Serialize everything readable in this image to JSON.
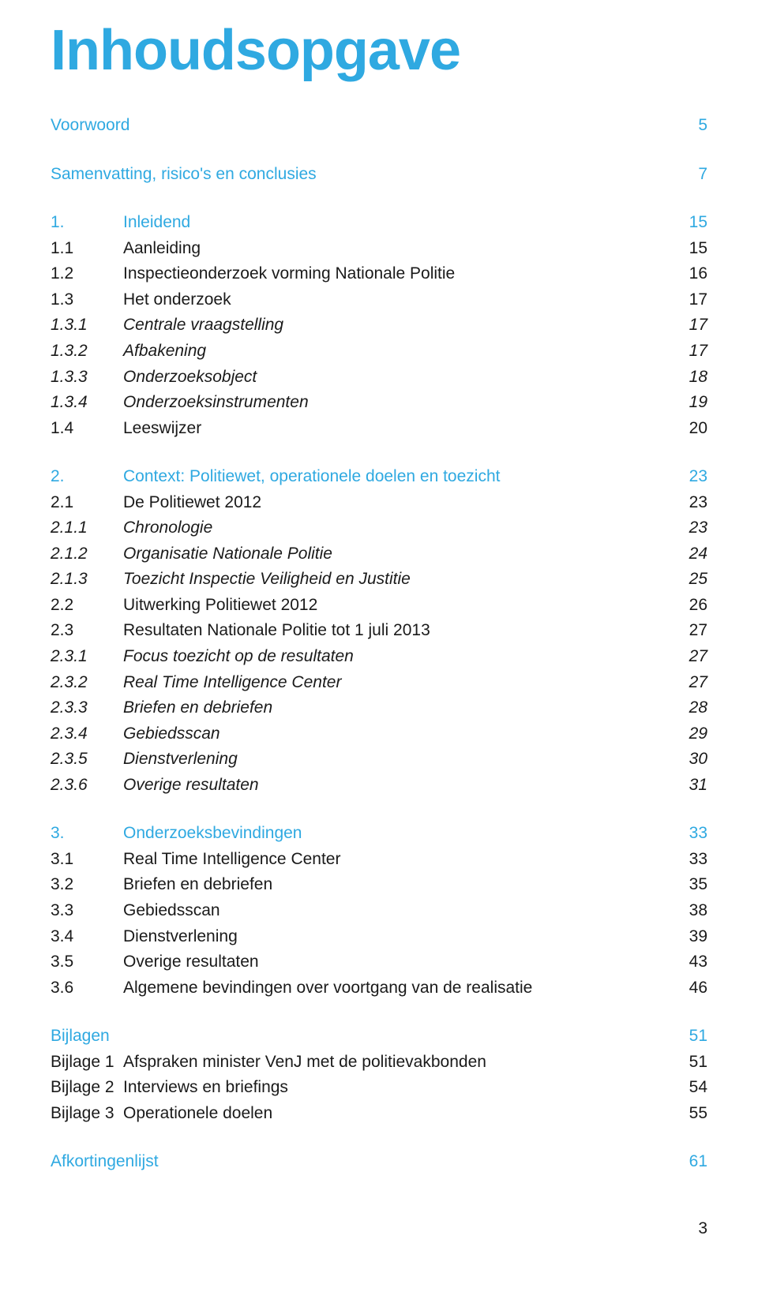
{
  "title": "Inhoudsopgave",
  "colors": {
    "accent": "#2fa9e1",
    "text": "#1a1a1a",
    "bg": "#ffffff"
  },
  "typography": {
    "title_size_pt": 54,
    "body_size_pt": 16,
    "font_family": "Segoe UI / Helvetica Neue"
  },
  "toc": [
    {
      "type": "section",
      "num": "",
      "label": "Voorwoord",
      "page": "5"
    },
    {
      "type": "section",
      "num": "",
      "label": "Samenvatting, risico's en conclusies",
      "page": "7"
    },
    {
      "type": "section",
      "num": "1.",
      "label": "Inleidend",
      "page": "15"
    },
    {
      "type": "item",
      "num": "1.1",
      "label": "Aanleiding",
      "page": "15"
    },
    {
      "type": "item",
      "num": "1.2",
      "label": "Inspectieonderzoek vorming Nationale Politie",
      "page": "16"
    },
    {
      "type": "item",
      "num": "1.3",
      "label": "Het onderzoek",
      "page": "17"
    },
    {
      "type": "sub",
      "num": "1.3.1",
      "label": "Centrale vraagstelling",
      "page": "17"
    },
    {
      "type": "sub",
      "num": "1.3.2",
      "label": "Afbakening",
      "page": "17"
    },
    {
      "type": "sub",
      "num": "1.3.3",
      "label": "Onderzoeksobject",
      "page": "18"
    },
    {
      "type": "sub",
      "num": "1.3.4",
      "label": "Onderzoeksinstrumenten",
      "page": "19"
    },
    {
      "type": "item",
      "num": "1.4",
      "label": "Leeswijzer",
      "page": "20"
    },
    {
      "type": "section",
      "num": "2.",
      "label": "Context: Politiewet, operationele doelen en toezicht",
      "page": "23"
    },
    {
      "type": "item",
      "num": "2.1",
      "label": "De Politiewet 2012",
      "page": "23"
    },
    {
      "type": "sub",
      "num": "2.1.1",
      "label": "Chronologie",
      "page": "23"
    },
    {
      "type": "sub",
      "num": "2.1.2",
      "label": "Organisatie Nationale Politie",
      "page": "24"
    },
    {
      "type": "sub",
      "num": "2.1.3",
      "label": "Toezicht Inspectie Veiligheid en Justitie",
      "page": "25"
    },
    {
      "type": "item",
      "num": "2.2",
      "label": "Uitwerking Politiewet 2012",
      "page": "26"
    },
    {
      "type": "item",
      "num": "2.3",
      "label": "Resultaten Nationale Politie tot 1 juli 2013",
      "page": "27"
    },
    {
      "type": "sub",
      "num": "2.3.1",
      "label": "Focus toezicht op de resultaten",
      "page": "27"
    },
    {
      "type": "sub",
      "num": "2.3.2",
      "label": "Real Time Intelligence Center",
      "page": "27"
    },
    {
      "type": "sub",
      "num": "2.3.3",
      "label": "Briefen en debriefen",
      "page": "28"
    },
    {
      "type": "sub",
      "num": "2.3.4",
      "label": "Gebiedsscan",
      "page": "29"
    },
    {
      "type": "sub",
      "num": "2.3.5",
      "label": "Dienstverlening",
      "page": "30"
    },
    {
      "type": "sub",
      "num": "2.3.6",
      "label": "Overige resultaten",
      "page": "31"
    },
    {
      "type": "section",
      "num": "3.",
      "label": "Onderzoeksbevindingen",
      "page": "33"
    },
    {
      "type": "item",
      "num": "3.1",
      "label": "Real Time Intelligence Center",
      "page": "33"
    },
    {
      "type": "item",
      "num": "3.2",
      "label": "Briefen en debriefen",
      "page": "35"
    },
    {
      "type": "item",
      "num": "3.3",
      "label": "Gebiedsscan",
      "page": "38"
    },
    {
      "type": "item",
      "num": "3.4",
      "label": "Dienstverlening",
      "page": "39"
    },
    {
      "type": "item",
      "num": "3.5",
      "label": "Overige resultaten",
      "page": "43"
    },
    {
      "type": "item",
      "num": "3.6",
      "label": "Algemene bevindingen over voortgang van de realisatie",
      "page": "46"
    },
    {
      "type": "section",
      "num": "",
      "label": "Bijlagen",
      "page": "51"
    },
    {
      "type": "item",
      "num": "Bijlage 1",
      "label": "Afspraken minister VenJ met de politievakbonden",
      "page": "51"
    },
    {
      "type": "item",
      "num": "Bijlage 2",
      "label": "Interviews en briefings",
      "page": "54"
    },
    {
      "type": "item",
      "num": "Bijlage 3",
      "label": "Operationele doelen",
      "page": "55"
    },
    {
      "type": "section",
      "num": "",
      "label": "Afkortingenlijst",
      "page": "61"
    }
  ],
  "page_number": "3"
}
